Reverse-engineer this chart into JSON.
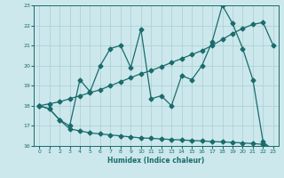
{
  "title": "",
  "xlabel": "Humidex (Indice chaleur)",
  "bg_color": "#cce8ec",
  "grid_color": "#aacdd4",
  "line_color": "#1a6b6b",
  "xlim": [
    -0.5,
    23.5
  ],
  "ylim": [
    16,
    23
  ],
  "xticks": [
    0,
    1,
    2,
    3,
    4,
    5,
    6,
    7,
    8,
    9,
    10,
    11,
    12,
    13,
    14,
    15,
    16,
    17,
    18,
    19,
    20,
    21,
    22,
    23
  ],
  "yticks": [
    16,
    17,
    18,
    19,
    20,
    21,
    22,
    23
  ],
  "line1_x": [
    0,
    1,
    2,
    3,
    4,
    5,
    6,
    7,
    8,
    9,
    10,
    11,
    12,
    13,
    14,
    15,
    16,
    17,
    18,
    19,
    20,
    21,
    22,
    23
  ],
  "line1_y": [
    18.0,
    17.85,
    17.3,
    17.0,
    19.3,
    18.7,
    20.0,
    20.85,
    21.0,
    19.9,
    21.8,
    18.35,
    18.5,
    18.0,
    19.5,
    19.3,
    20.0,
    21.2,
    23.0,
    22.1,
    20.85,
    19.3,
    16.2,
    15.8
  ],
  "line2_x": [
    0,
    1,
    2,
    3,
    4,
    5,
    6,
    7,
    8,
    9,
    10,
    11,
    12,
    13,
    14,
    15,
    16,
    17,
    18,
    19,
    20,
    21,
    22,
    23
  ],
  "line2_y": [
    18.0,
    18.1,
    18.2,
    18.35,
    18.5,
    18.65,
    18.8,
    19.0,
    19.2,
    19.4,
    19.6,
    19.75,
    19.95,
    20.15,
    20.35,
    20.55,
    20.75,
    21.0,
    21.3,
    21.6,
    21.85,
    22.05,
    22.15,
    21.0
  ],
  "line3_x": [
    0,
    1,
    2,
    3,
    4,
    5,
    6,
    7,
    8,
    9,
    10,
    11,
    12,
    13,
    14,
    15,
    16,
    17,
    18,
    19,
    20,
    21,
    22,
    23
  ],
  "line3_y": [
    18.0,
    17.85,
    17.3,
    16.85,
    16.75,
    16.65,
    16.6,
    16.55,
    16.5,
    16.45,
    16.4,
    16.38,
    16.35,
    16.32,
    16.3,
    16.27,
    16.25,
    16.22,
    16.2,
    16.18,
    16.15,
    16.12,
    16.08,
    15.85
  ],
  "markersize": 2.5,
  "linewidth": 0.9
}
